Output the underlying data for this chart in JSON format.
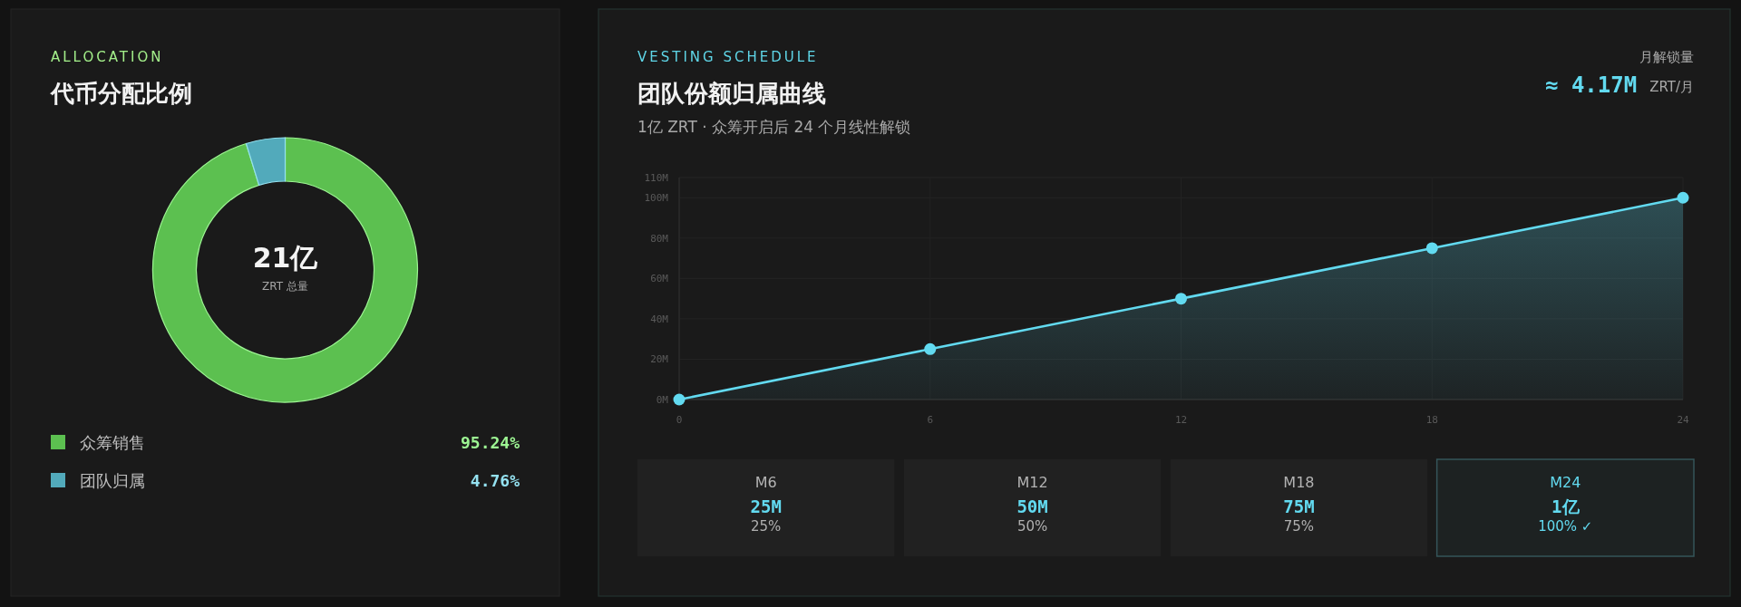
{
  "chart_data": [
    {
      "type": "donut",
      "title": "代币分配比例",
      "annotations": [
        "ALLOCATION",
        "21亿",
        "ZRT 总量"
      ],
      "categories": [
        "众筹销售",
        "团队归属"
      ],
      "values": [
        95.24,
        4.76
      ],
      "colors": [
        "#5cc050",
        "#52aabb"
      ],
      "value_labels": [
        "95.24%",
        "4.76%"
      ],
      "legend": "bottom"
    },
    {
      "type": "area",
      "title": "团队份额归属曲线",
      "subtitle": "1亿 ZRT · 众筹开启后 24 个月线性解锁",
      "annotations": [
        "VESTING SCHEDULE",
        "月解锁量",
        "≈ 4.17M",
        "ZRT/月",
        "M6",
        "25M",
        "25%",
        "M12",
        "50M",
        "50%",
        "M18",
        "75M",
        "75%",
        "M24",
        "1亿",
        "100% ✓"
      ],
      "x": [
        0,
        6,
        12,
        18,
        24
      ],
      "values": [
        0,
        25,
        50,
        75,
        100
      ],
      "color": "#62daf0",
      "xlim": [
        0,
        24
      ],
      "xticks": [
        0,
        6,
        12,
        18,
        24
      ],
      "ylim": [
        0,
        110
      ],
      "yticks": [
        {
          "value": 0,
          "label": "0M"
        },
        {
          "value": 20,
          "label": "20M"
        },
        {
          "value": 40,
          "label": "40M"
        },
        {
          "value": 60,
          "label": "60M"
        },
        {
          "value": 80,
          "label": "80M"
        },
        {
          "value": 100,
          "label": "100M"
        },
        {
          "value": 110,
          "label": "110M"
        }
      ],
      "grid": true,
      "marker": "circle",
      "line_style": "solid"
    }
  ]
}
